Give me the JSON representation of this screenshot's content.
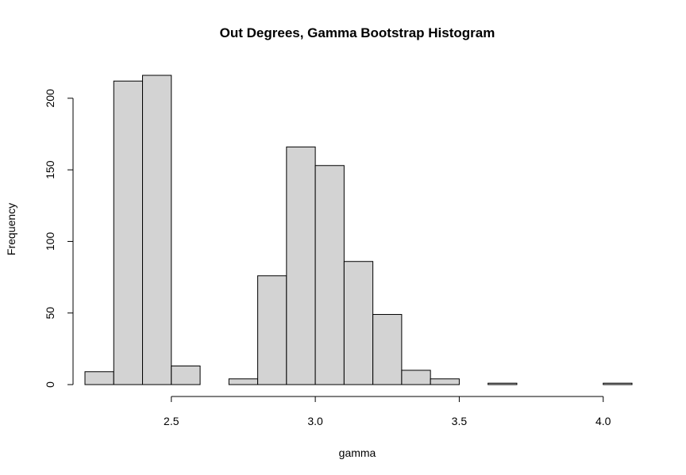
{
  "chart_data": {
    "type": "bar",
    "title": "Out Degrees, Gamma Bootstrap Histogram",
    "xlabel": "gamma",
    "ylabel": "Frequency",
    "bin_edges": [
      2.2,
      2.3,
      2.4,
      2.5,
      2.6,
      2.7,
      2.8,
      2.9,
      3.0,
      3.1,
      3.2,
      3.3,
      3.4,
      3.5,
      3.6,
      3.7,
      3.8,
      3.9,
      4.0,
      4.1
    ],
    "values": [
      9,
      212,
      216,
      13,
      0,
      4,
      76,
      166,
      153,
      86,
      49,
      10,
      4,
      0,
      1,
      0,
      0,
      0,
      1
    ],
    "xlim": [
      2.2,
      4.1
    ],
    "ylim": [
      0,
      216
    ],
    "x_ticks": [
      2.5,
      3.0,
      3.5,
      4.0
    ],
    "x_tick_labels": [
      "2.5",
      "3.0",
      "3.5",
      "4.0"
    ],
    "y_ticks": [
      0,
      50,
      100,
      150,
      200
    ],
    "y_tick_labels": [
      "0",
      "50",
      "100",
      "150",
      "200"
    ],
    "bar_color": "#d3d3d3",
    "border_color": "#000000",
    "grid": false
  }
}
